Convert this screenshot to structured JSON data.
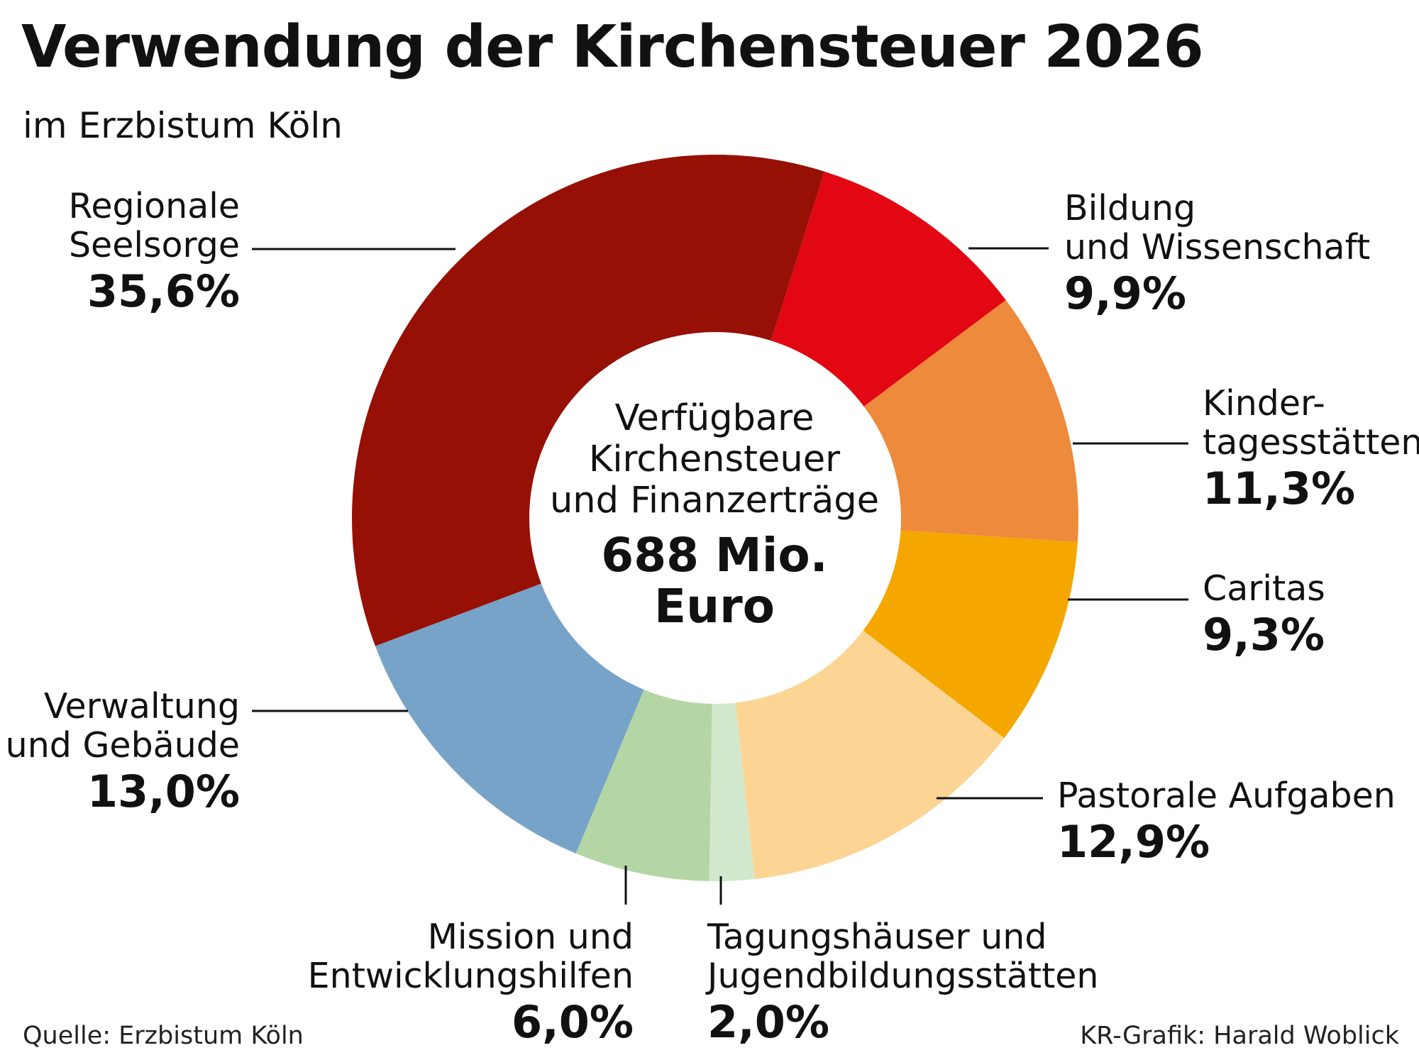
{
  "header": {
    "title": "Verwendung der Kirchensteuer 2026",
    "subtitle": "im Erzbistum Köln"
  },
  "center": {
    "line1": "Verfügbare",
    "line2": "Kirchensteuer",
    "line3": "und Finanzerträge",
    "total_line1": "688 Mio.",
    "total_line2": "Euro"
  },
  "chart_data": {
    "type": "pie",
    "style": "donut",
    "unit": "%",
    "slices": [
      {
        "label_lines": [
          "Bildung",
          "und Wissenschaft"
        ],
        "value": 9.9,
        "display": "9,9%",
        "color": "#e30613"
      },
      {
        "label_lines": [
          "Kinder-",
          "tagesstätten"
        ],
        "value": 11.3,
        "display": "11,3%",
        "color": "#ee8a3c"
      },
      {
        "label_lines": [
          "Caritas"
        ],
        "value": 9.3,
        "display": "9,3%",
        "color": "#f5a700"
      },
      {
        "label_lines": [
          "Pastorale Aufgaben"
        ],
        "value": 12.9,
        "display": "12,9%",
        "color": "#fcd494"
      },
      {
        "label_lines": [
          "Tagungshäuser und",
          "Jugendbildungsstätten"
        ],
        "value": 2.0,
        "display": "2,0%",
        "color": "#d2e8cd"
      },
      {
        "label_lines": [
          "Mission und",
          "Entwicklungshilfen"
        ],
        "value": 6.0,
        "display": "6,0%",
        "color": "#b4d6a4"
      },
      {
        "label_lines": [
          "Verwaltung",
          "und Gebäude"
        ],
        "value": 13.0,
        "display": "13,0%",
        "color": "#77a3c8"
      },
      {
        "label_lines": [
          "Regionale",
          "Seelsorge"
        ],
        "value": 35.6,
        "display": "35,6%",
        "color": "#961005"
      }
    ]
  },
  "footer": {
    "source": "Quelle: Erzbistum Köln",
    "credit": "KR-Grafik: Harald Woblick"
  }
}
